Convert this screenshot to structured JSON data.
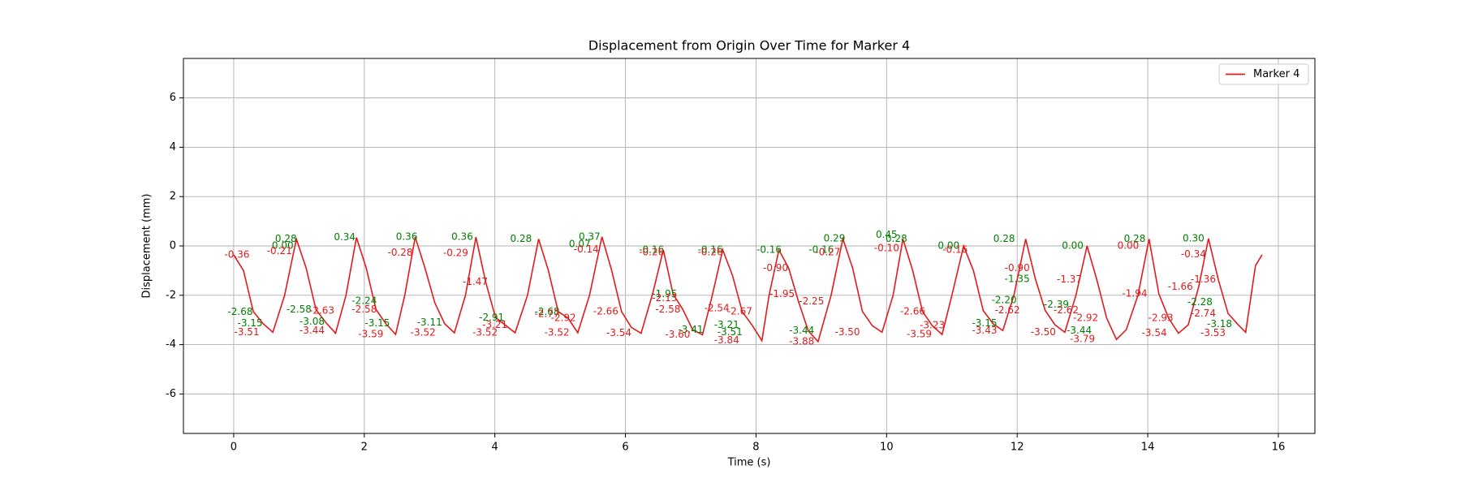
{
  "chart_data": {
    "type": "line",
    "title": "Displacement from Origin Over Time for Marker 4",
    "x_label": "Time (s)",
    "y_label": "Displacement (mm)",
    "xlim": [
      -0.77,
      16.56
    ],
    "ylim": [
      -7.6,
      7.6
    ],
    "xticks": [
      0,
      2,
      4,
      6,
      8,
      10,
      12,
      14,
      16
    ],
    "yticks": [
      -6,
      -4,
      -2,
      0,
      2,
      4,
      6
    ],
    "grid": true,
    "legend": "upper right",
    "x": [
      0,
      0.15,
      0.3,
      0.45,
      0.6,
      0.78,
      0.96,
      1.11,
      1.26,
      1.41,
      1.56,
      1.72,
      1.88,
      2.03,
      2.18,
      2.33,
      2.48,
      2.62,
      2.78,
      2.93,
      3.08,
      3.23,
      3.38,
      3.55,
      3.71,
      3.86,
      4.01,
      4.16,
      4.31,
      4.5,
      4.67,
      4.82,
      4.97,
      5.12,
      5.27,
      5.45,
      5.64,
      5.79,
      5.94,
      6.09,
      6.24,
      6.42,
      6.58,
      6.73,
      6.88,
      7.03,
      7.18,
      7.33,
      7.49,
      7.64,
      7.79,
      7.94,
      8.09,
      8.2,
      8.35,
      8.5,
      8.65,
      8.8,
      8.95,
      9.15,
      9.33,
      9.48,
      9.63,
      9.78,
      9.93,
      10.1,
      10.25,
      10.4,
      10.55,
      10.7,
      10.85,
      11.0,
      11.18,
      11.33,
      11.48,
      11.63,
      11.78,
      11.95,
      12.13,
      12.28,
      12.43,
      12.58,
      12.73,
      12.9,
      13.07,
      13.22,
      13.37,
      13.52,
      13.67,
      13.85,
      14.02,
      14.17,
      14.32,
      14.47,
      14.62,
      14.78,
      14.93,
      15.08,
      15.23,
      15.38,
      15.5,
      15.65,
      15.75
    ],
    "series": [
      {
        "name": "Marker 4",
        "color": "#e41a1c",
        "values": [
          -0.36,
          -1.0,
          -2.66,
          -3.15,
          -3.5,
          -2.0,
          0.28,
          -0.9,
          -2.58,
          -3.1,
          -3.54,
          -2.0,
          0.34,
          -0.9,
          -2.58,
          -3.15,
          -3.59,
          -2.0,
          0.36,
          -0.9,
          -2.3,
          -3.15,
          -3.52,
          -2.0,
          0.36,
          -1.47,
          -2.9,
          -3.21,
          -3.52,
          -2.0,
          0.28,
          -1.0,
          -2.66,
          -2.92,
          -3.52,
          -2.0,
          0.37,
          -1.0,
          -2.66,
          -3.3,
          -3.54,
          -1.9,
          -0.16,
          -1.95,
          -2.58,
          -3.4,
          -3.6,
          -2.0,
          -0.16,
          -1.2,
          -2.67,
          -3.21,
          -3.84,
          -2.0,
          -0.16,
          -0.9,
          -2.25,
          -3.44,
          -3.88,
          -2.0,
          0.29,
          -0.9,
          -2.66,
          -3.23,
          -3.5,
          -2.0,
          0.28,
          -1.0,
          -2.66,
          -3.23,
          -3.59,
          -2.0,
          0.0,
          -1.0,
          -2.62,
          -3.15,
          -3.43,
          -2.0,
          0.28,
          -1.35,
          -2.62,
          -3.2,
          -3.5,
          -2.0,
          0.0,
          -1.37,
          -2.92,
          -3.79,
          -3.4,
          -2.0,
          0.28,
          -1.94,
          -2.93,
          -3.54,
          -3.2,
          -1.66,
          0.3,
          -1.36,
          -2.74,
          -3.18,
          -3.5,
          -0.8,
          -0.36
        ]
      }
    ],
    "annotations": [
      {
        "x": 0.05,
        "value": -0.36,
        "label": "-0.36",
        "color": "#e41a1c"
      },
      {
        "x": 0.1,
        "value": -2.68,
        "label": "-2.68",
        "color": "green"
      },
      {
        "x": 0.25,
        "value": -3.15,
        "label": "-3.15",
        "color": "green"
      },
      {
        "x": 0.2,
        "value": -3.51,
        "label": "-3.51",
        "color": "#e41a1c"
      },
      {
        "x": 0.75,
        "value": 0.0,
        "label": "0.00",
        "color": "green"
      },
      {
        "x": 0.8,
        "value": 0.28,
        "label": "0.28",
        "color": "green"
      },
      {
        "x": 0.7,
        "value": -0.21,
        "label": "-0.21",
        "color": "#e41a1c"
      },
      {
        "x": 1.0,
        "value": -2.58,
        "label": "-2.58",
        "color": "green"
      },
      {
        "x": 1.35,
        "value": -2.63,
        "label": "-2.63",
        "color": "#e41a1c"
      },
      {
        "x": 1.2,
        "value": -3.08,
        "label": "-3.08",
        "color": "green"
      },
      {
        "x": 1.2,
        "value": -3.44,
        "label": "-3.44",
        "color": "#e41a1c"
      },
      {
        "x": 1.7,
        "value": 0.34,
        "label": "0.34",
        "color": "green"
      },
      {
        "x": 2.0,
        "value": -2.24,
        "label": "-2.24",
        "color": "green"
      },
      {
        "x": 2.0,
        "value": -2.58,
        "label": "-2.58",
        "color": "#e41a1c"
      },
      {
        "x": 2.2,
        "value": -3.15,
        "label": "-3.15",
        "color": "green"
      },
      {
        "x": 2.1,
        "value": -3.59,
        "label": "-3.59",
        "color": "#e41a1c"
      },
      {
        "x": 2.65,
        "value": 0.36,
        "label": "0.36",
        "color": "green"
      },
      {
        "x": 2.55,
        "value": -0.28,
        "label": "-0.28",
        "color": "#e41a1c"
      },
      {
        "x": 3.0,
        "value": -3.11,
        "label": "-3.11",
        "color": "green"
      },
      {
        "x": 2.9,
        "value": -3.52,
        "label": "-3.52",
        "color": "#e41a1c"
      },
      {
        "x": 3.5,
        "value": 0.36,
        "label": "0.36",
        "color": "green"
      },
      {
        "x": 3.4,
        "value": -0.29,
        "label": "-0.29",
        "color": "#e41a1c"
      },
      {
        "x": 3.7,
        "value": -1.47,
        "label": "-1.47",
        "color": "#e41a1c"
      },
      {
        "x": 3.95,
        "value": -2.91,
        "label": "-2.91",
        "color": "green"
      },
      {
        "x": 4.0,
        "value": -3.21,
        "label": "-3.21",
        "color": "#e41a1c"
      },
      {
        "x": 3.85,
        "value": -3.52,
        "label": "-3.52",
        "color": "#e41a1c"
      },
      {
        "x": 4.4,
        "value": 0.28,
        "label": "0.28",
        "color": "green"
      },
      {
        "x": 4.8,
        "value": -2.68,
        "label": "-2.68",
        "color": "green"
      },
      {
        "x": 4.8,
        "value": -2.77,
        "label": "-2.77",
        "color": "#e41a1c"
      },
      {
        "x": 5.05,
        "value": -2.92,
        "label": "-2.92",
        "color": "#e41a1c"
      },
      {
        "x": 4.95,
        "value": -3.52,
        "label": "-3.52",
        "color": "#e41a1c"
      },
      {
        "x": 5.45,
        "value": 0.37,
        "label": "0.37",
        "color": "green"
      },
      {
        "x": 5.3,
        "value": 0.07,
        "label": "0.07",
        "color": "green"
      },
      {
        "x": 5.4,
        "value": -0.14,
        "label": "-0.14",
        "color": "#e41a1c"
      },
      {
        "x": 5.7,
        "value": -2.66,
        "label": "-2.66",
        "color": "#e41a1c"
      },
      {
        "x": 5.9,
        "value": -3.54,
        "label": "-3.54",
        "color": "#e41a1c"
      },
      {
        "x": 6.4,
        "value": -0.16,
        "label": "-0.16",
        "color": "green"
      },
      {
        "x": 6.4,
        "value": -0.26,
        "label": "-0.26",
        "color": "#e41a1c"
      },
      {
        "x": 6.6,
        "value": -1.95,
        "label": "-1.95",
        "color": "green"
      },
      {
        "x": 6.6,
        "value": -2.13,
        "label": "-2.13",
        "color": "#e41a1c"
      },
      {
        "x": 6.65,
        "value": -2.58,
        "label": "-2.58",
        "color": "#e41a1c"
      },
      {
        "x": 7.0,
        "value": -3.41,
        "label": "-3.41",
        "color": "green"
      },
      {
        "x": 6.8,
        "value": -3.6,
        "label": "-3.60",
        "color": "#e41a1c"
      },
      {
        "x": 7.3,
        "value": -0.16,
        "label": "-0.16",
        "color": "green"
      },
      {
        "x": 7.3,
        "value": -0.26,
        "label": "-0.26",
        "color": "#e41a1c"
      },
      {
        "x": 7.4,
        "value": -2.54,
        "label": "-2.54",
        "color": "#e41a1c"
      },
      {
        "x": 7.75,
        "value": -2.67,
        "label": "-2.67",
        "color": "#e41a1c"
      },
      {
        "x": 7.55,
        "value": -3.21,
        "label": "-3.21",
        "color": "green"
      },
      {
        "x": 7.6,
        "value": -3.51,
        "label": "-3.51",
        "color": "green"
      },
      {
        "x": 7.55,
        "value": -3.84,
        "label": "-3.84",
        "color": "#e41a1c"
      },
      {
        "x": 8.2,
        "value": -0.16,
        "label": "-0.16",
        "color": "green"
      },
      {
        "x": 8.3,
        "value": -0.9,
        "label": "-0.90",
        "color": "#e41a1c"
      },
      {
        "x": 8.4,
        "value": -1.95,
        "label": "-1.95",
        "color": "#e41a1c"
      },
      {
        "x": 8.85,
        "value": -2.25,
        "label": "-2.25",
        "color": "#e41a1c"
      },
      {
        "x": 8.7,
        "value": -3.44,
        "label": "-3.44",
        "color": "green"
      },
      {
        "x": 8.7,
        "value": -3.88,
        "label": "-3.88",
        "color": "#e41a1c"
      },
      {
        "x": 9.0,
        "value": -0.16,
        "label": "-0.16",
        "color": "green"
      },
      {
        "x": 9.1,
        "value": -0.27,
        "label": "-0.27",
        "color": "#e41a1c"
      },
      {
        "x": 9.2,
        "value": 0.29,
        "label": "0.29",
        "color": "green"
      },
      {
        "x": 9.4,
        "value": -3.5,
        "label": "-3.50",
        "color": "#e41a1c"
      },
      {
        "x": 10.0,
        "value": 0.45,
        "label": "0.45",
        "color": "green"
      },
      {
        "x": 10.15,
        "value": 0.28,
        "label": "0.28",
        "color": "green"
      },
      {
        "x": 10.0,
        "value": -0.1,
        "label": "-0.10",
        "color": "#e41a1c"
      },
      {
        "x": 10.4,
        "value": -2.66,
        "label": "-2.66",
        "color": "#e41a1c"
      },
      {
        "x": 10.7,
        "value": -3.23,
        "label": "-3.23",
        "color": "#e41a1c"
      },
      {
        "x": 10.5,
        "value": -3.59,
        "label": "-3.59",
        "color": "#e41a1c"
      },
      {
        "x": 10.95,
        "value": 0.0,
        "label": "0.00",
        "color": "green"
      },
      {
        "x": 11.05,
        "value": -0.16,
        "label": "-0.16",
        "color": "#e41a1c"
      },
      {
        "x": 11.5,
        "value": -3.15,
        "label": "-3.15",
        "color": "green"
      },
      {
        "x": 11.5,
        "value": -3.43,
        "label": "-3.43",
        "color": "#e41a1c"
      },
      {
        "x": 11.8,
        "value": -2.2,
        "label": "-2.20",
        "color": "green"
      },
      {
        "x": 11.85,
        "value": -2.62,
        "label": "-2.62",
        "color": "#e41a1c"
      },
      {
        "x": 11.8,
        "value": 0.28,
        "label": "0.28",
        "color": "green"
      },
      {
        "x": 12.0,
        "value": -0.9,
        "label": "-0.90",
        "color": "#e41a1c"
      },
      {
        "x": 12.0,
        "value": -1.35,
        "label": "-1.35",
        "color": "green"
      },
      {
        "x": 12.4,
        "value": -3.5,
        "label": "-3.50",
        "color": "#e41a1c"
      },
      {
        "x": 12.6,
        "value": -2.39,
        "label": "-2.39",
        "color": "green"
      },
      {
        "x": 12.75,
        "value": -2.62,
        "label": "-2.62",
        "color": "#e41a1c"
      },
      {
        "x": 12.8,
        "value": -1.37,
        "label": "-1.37",
        "color": "#e41a1c"
      },
      {
        "x": 12.85,
        "value": 0.0,
        "label": "0.00",
        "color": "green"
      },
      {
        "x": 13.05,
        "value": -2.92,
        "label": "-2.92",
        "color": "#e41a1c"
      },
      {
        "x": 12.95,
        "value": -3.44,
        "label": "-3.44",
        "color": "green"
      },
      {
        "x": 13.0,
        "value": -3.79,
        "label": "-3.79",
        "color": "#e41a1c"
      },
      {
        "x": 13.8,
        "value": 0.28,
        "label": "0.28",
        "color": "green"
      },
      {
        "x": 13.7,
        "value": 0.0,
        "label": "0.00",
        "color": "#e41a1c"
      },
      {
        "x": 13.8,
        "value": -1.94,
        "label": "-1.94",
        "color": "#e41a1c"
      },
      {
        "x": 14.2,
        "value": -2.93,
        "label": "-2.93",
        "color": "#e41a1c"
      },
      {
        "x": 14.1,
        "value": -3.54,
        "label": "-3.54",
        "color": "#e41a1c"
      },
      {
        "x": 14.5,
        "value": -1.66,
        "label": "-1.66",
        "color": "#e41a1c"
      },
      {
        "x": 14.7,
        "value": 0.3,
        "label": "0.30",
        "color": "green"
      },
      {
        "x": 14.7,
        "value": -0.34,
        "label": "-0.34",
        "color": "#e41a1c"
      },
      {
        "x": 14.85,
        "value": -1.36,
        "label": "-1.36",
        "color": "#e41a1c"
      },
      {
        "x": 14.8,
        "value": -2.28,
        "label": "-2.28",
        "color": "green"
      },
      {
        "x": 14.85,
        "value": -2.74,
        "label": "-2.74",
        "color": "#e41a1c"
      },
      {
        "x": 15.1,
        "value": -3.18,
        "label": "-3.18",
        "color": "green"
      },
      {
        "x": 15.0,
        "value": -3.53,
        "label": "-3.53",
        "color": "#e41a1c"
      }
    ]
  }
}
